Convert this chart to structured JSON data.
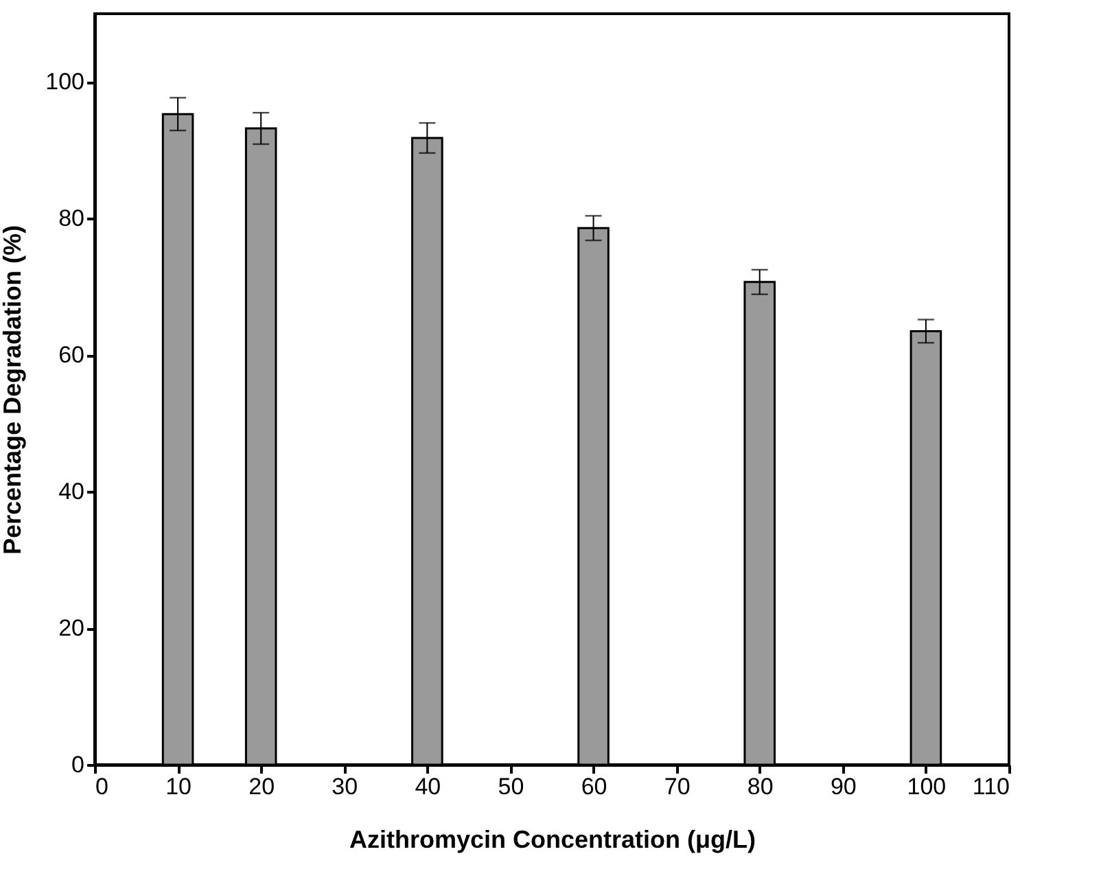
{
  "chart_data": {
    "type": "bar",
    "xlabel": "Azithromycin Concentration (μg/L)",
    "ylabel": "Percentage Degradation (%)",
    "x": [
      10,
      20,
      40,
      60,
      80,
      100
    ],
    "values": [
      95.3,
      93.2,
      91.8,
      78.6,
      70.7,
      63.5
    ],
    "errors": [
      2.4,
      2.3,
      2.2,
      1.8,
      1.8,
      1.7
    ],
    "color": "#9a9a9a",
    "xlim": [
      0,
      110
    ],
    "xticks": [
      0,
      10,
      20,
      30,
      40,
      50,
      60,
      70,
      80,
      90,
      100,
      110
    ],
    "ylim": [
      0,
      110
    ],
    "yticks": [
      0,
      20,
      40,
      60,
      80,
      100
    ]
  }
}
